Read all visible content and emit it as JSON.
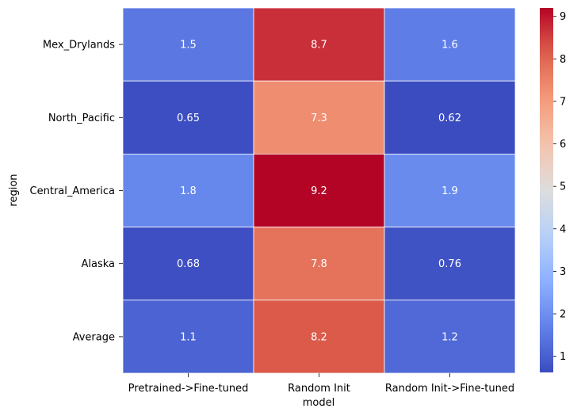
{
  "chart_data": {
    "type": "heatmap",
    "xlabel": "model",
    "ylabel": "region",
    "columns": [
      "Pretrained->Fine-tuned",
      "Random Init",
      "Random Init->Fine-tuned"
    ],
    "rows": [
      "Mex_Drylands",
      "North_Pacific",
      "Central_America",
      "Alaska",
      "Average"
    ],
    "values": [
      [
        1.5,
        8.7,
        1.6
      ],
      [
        0.65,
        7.3,
        0.62
      ],
      [
        1.8,
        9.2,
        1.9
      ],
      [
        0.68,
        7.8,
        0.76
      ],
      [
        1.1,
        8.2,
        1.2
      ]
    ],
    "value_labels": [
      [
        "1.5",
        "8.7",
        "1.6"
      ],
      [
        "0.65",
        "7.3",
        "0.62"
      ],
      [
        "1.8",
        "9.2",
        "1.9"
      ],
      [
        "0.68",
        "7.8",
        "0.76"
      ],
      [
        "1.1",
        "8.2",
        "1.2"
      ]
    ],
    "colormap": "coolwarm",
    "colorbar": {
      "vmin": 0.62,
      "vmax": 9.2,
      "ticks": [
        1,
        2,
        3,
        4,
        5,
        6,
        7,
        8,
        9
      ]
    },
    "annotation_color": "#ffffff",
    "gridline_color": "#ffffff"
  }
}
